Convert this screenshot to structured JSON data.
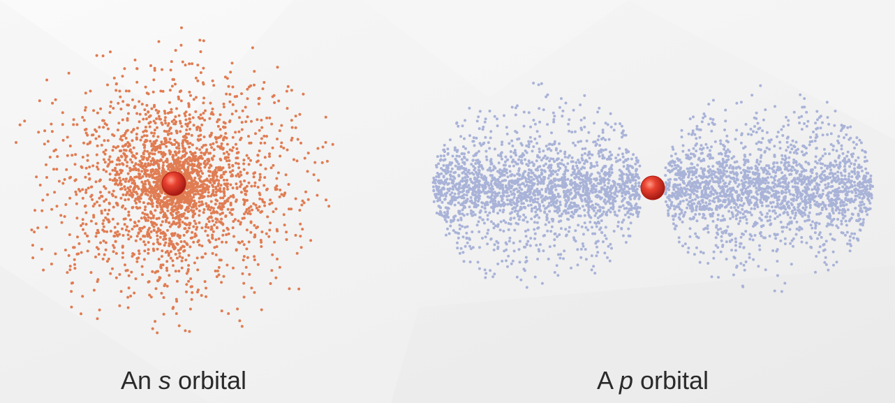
{
  "diagrams": [
    {
      "caption_prefix": "An ",
      "caption_var": "s",
      "caption_suffix": " orbital",
      "dot_color": "#e07c52",
      "shape": "sphere"
    },
    {
      "caption_prefix": "A ",
      "caption_var": "p",
      "caption_suffix": " orbital",
      "dot_color": "#a9b3d8",
      "shape": "dumbbell"
    }
  ],
  "nucleus_color": "#d42a1f"
}
